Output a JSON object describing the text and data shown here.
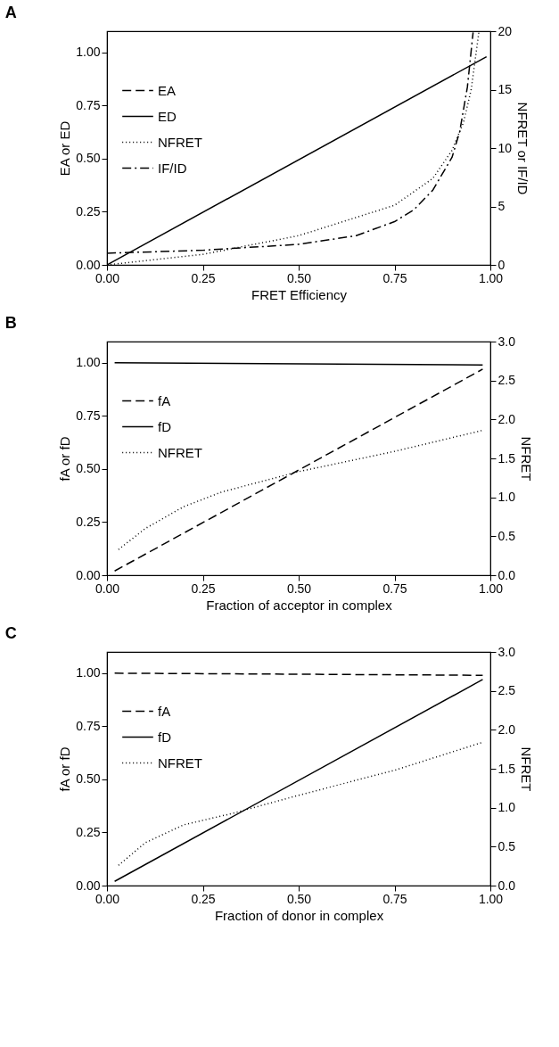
{
  "chart_data": [
    {
      "type": "line",
      "title": "A",
      "xlabel": "FRET Efficiency",
      "ylabel": "EA or ED",
      "y2label": "NFRET or IF/ID",
      "legend": "top left",
      "grid": false,
      "xlim": [
        0,
        1
      ],
      "xticks": [
        {
          "value": 0,
          "label": "0.00"
        },
        {
          "value": 0.25,
          "label": "0.25"
        },
        {
          "value": 0.5,
          "label": "0.50"
        },
        {
          "value": 0.75,
          "label": "0.75"
        },
        {
          "value": 1,
          "label": "1.00"
        }
      ],
      "ylim": [
        0,
        1.1
      ],
      "yticks": [
        {
          "value": 0,
          "label": "0.00"
        },
        {
          "value": 0.25,
          "label": "0.25"
        },
        {
          "value": 0.5,
          "label": "0.50"
        },
        {
          "value": 0.75,
          "label": "0.75"
        },
        {
          "value": 1,
          "label": "1.00"
        }
      ],
      "y2lim": [
        0,
        20
      ],
      "y2ticks": [
        0,
        5,
        10,
        15,
        20
      ],
      "series": [
        {
          "name": "EA",
          "color": "#000000",
          "line_style": "dashed"
        },
        {
          "name": "ED",
          "color": "#000000",
          "line_style": "solid",
          "x": [
            0,
            0.99
          ],
          "values": [
            0,
            0.98
          ]
        },
        {
          "name": "NFRET",
          "color": "#000000",
          "line_style": "dotted",
          "axis": "y2",
          "x": [
            0,
            0.25,
            0.5,
            0.75,
            0.85,
            0.9,
            0.93,
            0.95,
            0.97
          ],
          "values": [
            0,
            0.9,
            2.5,
            5.1,
            7.4,
            9.8,
            12.2,
            15,
            19.9
          ]
        },
        {
          "name": "IF/ID",
          "color": "#000000",
          "line_style": "dashdot",
          "axis": "y2",
          "x": [
            0,
            0.25,
            0.5,
            0.65,
            0.75,
            0.8,
            0.85,
            0.9,
            0.92,
            0.94,
            0.955
          ],
          "values": [
            1.0,
            1.25,
            1.76,
            2.5,
            3.7,
            4.7,
            6.4,
            9.2,
            11.4,
            15.2,
            19.9
          ]
        }
      ]
    },
    {
      "type": "line",
      "title": "B",
      "xlabel": "Fraction of acceptor in complex",
      "ylabel": "fA or fD",
      "y2label": "NFRET",
      "legend": "top left",
      "grid": false,
      "xlim": [
        0,
        1
      ],
      "xticks": [
        {
          "value": 0,
          "label": "0.00"
        },
        {
          "value": 0.25,
          "label": "0.25"
        },
        {
          "value": 0.5,
          "label": "0.50"
        },
        {
          "value": 0.75,
          "label": "0.75"
        },
        {
          "value": 1,
          "label": "1.00"
        }
      ],
      "ylim": [
        0,
        1.1
      ],
      "yticks": [
        {
          "value": 0,
          "label": "0.00"
        },
        {
          "value": 0.25,
          "label": "0.25"
        },
        {
          "value": 0.5,
          "label": "0.50"
        },
        {
          "value": 0.75,
          "label": "0.75"
        },
        {
          "value": 1,
          "label": "1.00"
        }
      ],
      "y2lim": [
        0,
        3.0
      ],
      "y2ticks": [
        {
          "value": 0,
          "label": "0.0"
        },
        0.5,
        {
          "value": 1,
          "label": "1.0"
        },
        1.5,
        {
          "value": 2,
          "label": "2.0"
        },
        2.5,
        {
          "value": 3,
          "label": "3.0"
        }
      ],
      "series": [
        {
          "name": "fA",
          "color": "#000000",
          "line_style": "dashed",
          "x": [
            0.02,
            0.98
          ],
          "values": [
            0.02,
            0.97
          ]
        },
        {
          "name": "fD",
          "color": "#000000",
          "line_style": "solid",
          "x": [
            0.02,
            0.98
          ],
          "values": [
            1.0,
            0.99
          ]
        },
        {
          "name": "NFRET",
          "color": "#000000",
          "line_style": "dotted",
          "axis": "y2",
          "x": [
            0.03,
            0.1,
            0.2,
            0.3,
            0.5,
            0.75,
            0.98
          ],
          "values": [
            0.33,
            0.6,
            0.88,
            1.07,
            1.33,
            1.59,
            1.86
          ]
        }
      ]
    },
    {
      "type": "line",
      "title": "C",
      "xlabel": "Fraction of donor in complex",
      "ylabel": "fA or fD",
      "y2label": "NFRET",
      "legend": "top left",
      "grid": false,
      "xlim": [
        0,
        1
      ],
      "xticks": [
        {
          "value": 0,
          "label": "0.00"
        },
        {
          "value": 0.25,
          "label": "0.25"
        },
        {
          "value": 0.5,
          "label": "0.50"
        },
        {
          "value": 0.75,
          "label": "0.75"
        },
        {
          "value": 1,
          "label": "1.00"
        }
      ],
      "ylim": [
        0,
        1.1
      ],
      "yticks": [
        {
          "value": 0,
          "label": "0.00"
        },
        {
          "value": 0.25,
          "label": "0.25"
        },
        {
          "value": 0.5,
          "label": "0.50"
        },
        {
          "value": 0.75,
          "label": "0.75"
        },
        {
          "value": 1,
          "label": "1.00"
        }
      ],
      "y2lim": [
        0,
        3.0
      ],
      "y2ticks": [
        {
          "value": 0,
          "label": "0.0"
        },
        0.5,
        {
          "value": 1,
          "label": "1.0"
        },
        1.5,
        {
          "value": 2,
          "label": "2.0"
        },
        2.5,
        {
          "value": 3,
          "label": "3.0"
        }
      ],
      "series": [
        {
          "name": "fA",
          "color": "#000000",
          "line_style": "dashed",
          "x": [
            0.02,
            0.98
          ],
          "values": [
            1.0,
            0.99
          ]
        },
        {
          "name": "fD",
          "color": "#000000",
          "line_style": "solid",
          "x": [
            0.02,
            0.98
          ],
          "values": [
            0.02,
            0.97
          ]
        },
        {
          "name": "NFRET",
          "color": "#000000",
          "line_style": "dotted",
          "axis": "y2",
          "x": [
            0.03,
            0.1,
            0.2,
            0.33,
            0.5,
            0.75,
            0.98
          ],
          "values": [
            0.26,
            0.55,
            0.78,
            0.93,
            1.16,
            1.48,
            1.84
          ]
        }
      ]
    }
  ]
}
